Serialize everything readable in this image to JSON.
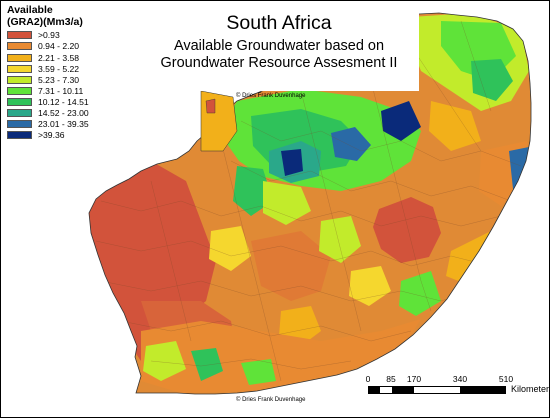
{
  "legend": {
    "title_line1": "Available",
    "title_line2": "(GRA2)(Mm3/a)",
    "classes": [
      {
        "label": ">0.93",
        "color": "#d2533b"
      },
      {
        "label": "0.94 - 2.20",
        "color": "#e88a32"
      },
      {
        "label": "2.21 - 3.58",
        "color": "#f2b01a"
      },
      {
        "label": "3.59 - 5.22",
        "color": "#f5d72e"
      },
      {
        "label": "5.23 - 7.30",
        "color": "#c2eb2b"
      },
      {
        "label": "7.31 - 10.11",
        "color": "#5fe339"
      },
      {
        "label": "10.12 - 14.51",
        "color": "#2fc25a"
      },
      {
        "label": "14.52 - 23.00",
        "color": "#2aa88a"
      },
      {
        "label": "23.01 - 39.35",
        "color": "#2a6aa6"
      },
      {
        "label": ">39.36",
        "color": "#0a2a7a"
      }
    ]
  },
  "title": {
    "main": "South Africa",
    "subtitle_line1": "Available Groundwater based on",
    "subtitle_line2": "Groundwater Resource Assesment II"
  },
  "credits": {
    "top": "© Dries Frank Duvenhage",
    "bottom": "© Dries Frank Duvenhage"
  },
  "scale": {
    "ticks": [
      "0",
      "85",
      "170",
      "340",
      "510"
    ],
    "tick_values_km": [
      0,
      85,
      170,
      340,
      510
    ],
    "units": "Kilometers"
  },
  "colors": {
    "border": "#000000",
    "background": "#ffffff"
  }
}
